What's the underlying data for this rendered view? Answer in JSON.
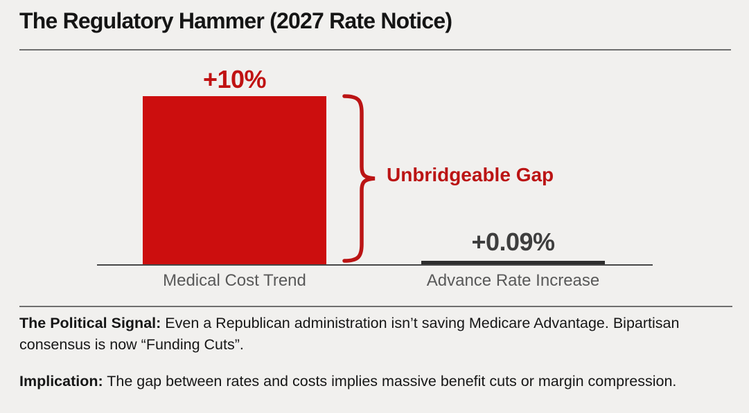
{
  "header": {
    "title": "The Regulatory Hammer (2027 Rate Notice)"
  },
  "chart_data": {
    "type": "bar",
    "title": "The Regulatory Hammer (2027 Rate Notice)",
    "categories": [
      "Medical Cost Trend",
      "Advance Rate Increase"
    ],
    "values": [
      10,
      0.09
    ],
    "value_labels": [
      "+10%",
      "+0.09%"
    ],
    "annotation": "Unbridgeable Gap",
    "xlabel": "",
    "ylabel": "",
    "ylim": [
      0,
      10
    ],
    "grid": false,
    "legend": false,
    "bar_colors": [
      "#cc0e0e",
      "#2d2d2d"
    ]
  },
  "notes": {
    "political_signal_label": "The Political Signal:",
    "political_signal_text": " Even a Republican administration isn’t saving Medicare Advantage. Bipartisan consensus is now “Funding Cuts”.",
    "implication_label": "Implication:",
    "implication_text": " The gap between rates and costs implies massive benefit cuts or margin compression."
  },
  "colors": {
    "background": "#f1f0ee",
    "accent_red": "#c01212",
    "bar_red": "#cc0e0e",
    "bar_dark": "#2d2d2d",
    "text_dark": "#161616",
    "text_gray": "#595959",
    "axis": "#474747",
    "divider": "#6e6e6e"
  }
}
